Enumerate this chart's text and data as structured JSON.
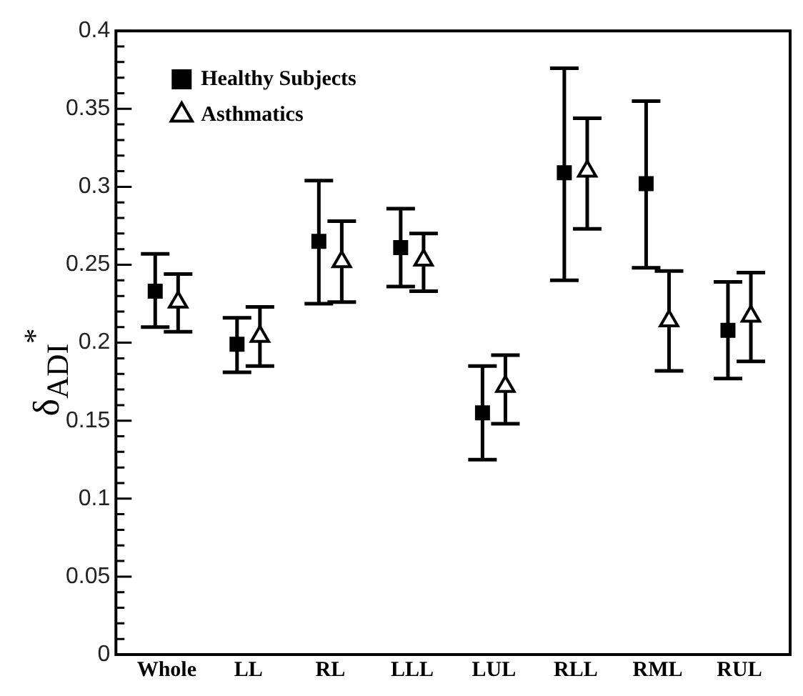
{
  "chart_data": {
    "type": "scatter",
    "ylabel": "δ$_{ADI}$$^{*}$",
    "categories": [
      "Whole",
      "LL",
      "RL",
      "LLL",
      "LUL",
      "RLL",
      "RML",
      "RUL"
    ],
    "series": [
      {
        "name": "Healthy Subjects",
        "color": "#000000",
        "marker": "square",
        "values": [
          0.233,
          0.199,
          0.265,
          0.261,
          0.155,
          0.309,
          0.302,
          0.208
        ],
        "errors": [
          [
            0.21,
            0.257
          ],
          [
            0.181,
            0.216
          ],
          [
            0.225,
            0.304
          ],
          [
            0.236,
            0.286
          ],
          [
            0.125,
            0.185
          ],
          [
            0.24,
            0.376
          ],
          [
            0.248,
            0.355
          ],
          [
            0.177,
            0.239
          ]
        ]
      },
      {
        "name": "Asthmatics",
        "color": "#000000",
        "marker": "triangle",
        "values": [
          0.226,
          0.204,
          0.252,
          0.253,
          0.172,
          0.31,
          0.214,
          0.217
        ],
        "errors": [
          [
            0.207,
            0.244
          ],
          [
            0.185,
            0.223
          ],
          [
            0.226,
            0.278
          ],
          [
            0.233,
            0.27
          ],
          [
            0.148,
            0.192
          ],
          [
            0.273,
            0.344
          ],
          [
            0.182,
            0.246
          ],
          [
            0.188,
            0.245
          ]
        ]
      }
    ],
    "ylim": [
      0,
      0.4
    ],
    "yticks": [
      0,
      {
        "value": 0.01,
        "label": null
      },
      {
        "value": 0.02,
        "label": null
      },
      {
        "value": 0.03,
        "label": null
      },
      {
        "value": 0.04,
        "label": null
      },
      0.05,
      {
        "value": 0.06,
        "label": null
      },
      {
        "value": 0.07,
        "label": null
      },
      {
        "value": 0.08,
        "label": null
      },
      {
        "value": 0.09,
        "label": null
      },
      0.1,
      {
        "value": 0.11,
        "label": null
      },
      {
        "value": 0.12,
        "label": null
      },
      {
        "value": 0.13,
        "label": null
      },
      {
        "value": 0.14,
        "label": null
      },
      0.15,
      {
        "value": 0.16,
        "label": null
      },
      {
        "value": 0.17,
        "label": null
      },
      {
        "value": 0.18,
        "label": null
      },
      {
        "value": 0.19,
        "label": null
      },
      0.2,
      {
        "value": 0.21,
        "label": null
      },
      {
        "value": 0.22,
        "label": null
      },
      {
        "value": 0.23,
        "label": null
      },
      {
        "value": 0.24,
        "label": null
      },
      0.25,
      {
        "value": 0.26,
        "label": null
      },
      {
        "value": 0.27,
        "label": null
      },
      {
        "value": 0.28,
        "label": null
      },
      {
        "value": 0.29,
        "label": null
      },
      0.3,
      {
        "value": 0.31,
        "label": null
      },
      {
        "value": 0.32,
        "label": null
      },
      {
        "value": 0.33,
        "label": null
      },
      {
        "value": 0.34,
        "label": null
      },
      0.35,
      {
        "value": 0.36,
        "label": null
      },
      {
        "value": 0.37,
        "label": null
      },
      {
        "value": 0.38,
        "label": null
      },
      {
        "value": 0.39,
        "label": null
      },
      0.4
    ],
    "grid": false,
    "legend": "top left"
  }
}
